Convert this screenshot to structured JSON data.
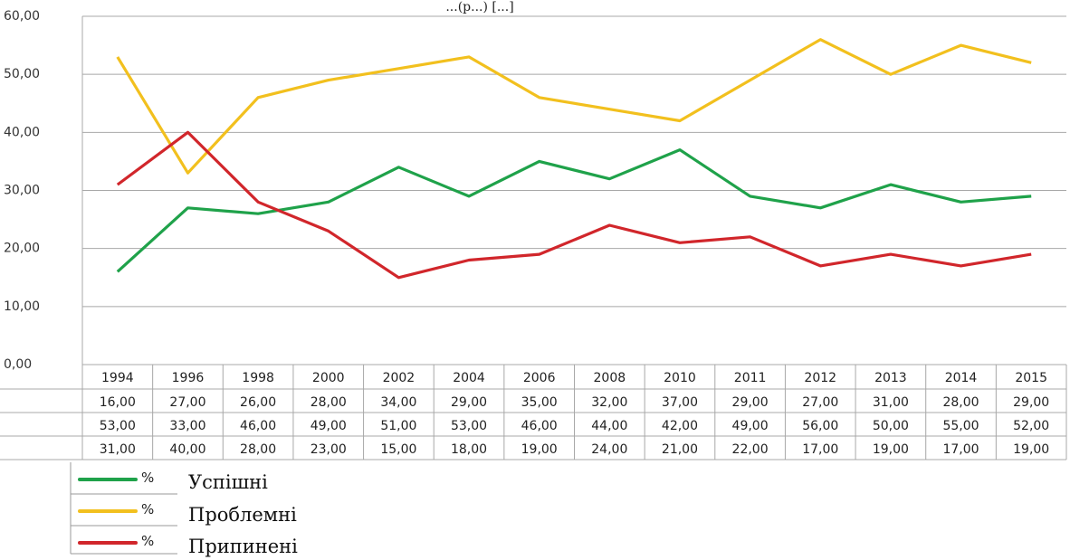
{
  "chart_data": {
    "type": "line",
    "title": "",
    "partial_header": "...(р...) [...]",
    "categories": [
      "1994",
      "1996",
      "1998",
      "2000",
      "2002",
      "2004",
      "2006",
      "2008",
      "2010",
      "2011",
      "2012",
      "2013",
      "2014",
      "2015"
    ],
    "ylim": [
      0,
      60
    ],
    "yticks": [
      "0,00",
      "10,00",
      "20,00",
      "30,00",
      "40,00",
      "50,00",
      "60,00"
    ],
    "grid": true,
    "series": [
      {
        "name": "Успішні",
        "unit": "%",
        "color": "#1fa24a",
        "values": [
          16,
          27,
          26,
          28,
          34,
          29,
          35,
          32,
          37,
          29,
          27,
          31,
          28,
          29
        ],
        "labels": [
          "16,00",
          "27,00",
          "26,00",
          "28,00",
          "34,00",
          "29,00",
          "35,00",
          "32,00",
          "37,00",
          "29,00",
          "27,00",
          "31,00",
          "28,00",
          "29,00"
        ]
      },
      {
        "name": "Проблемні",
        "unit": "%",
        "color": "#f2c01e",
        "values": [
          53,
          33,
          46,
          49,
          51,
          53,
          46,
          44,
          42,
          49,
          56,
          50,
          55,
          52
        ],
        "labels": [
          "53,00",
          "33,00",
          "46,00",
          "49,00",
          "51,00",
          "53,00",
          "46,00",
          "44,00",
          "42,00",
          "49,00",
          "56,00",
          "50,00",
          "55,00",
          "52,00"
        ]
      },
      {
        "name": "Припинені",
        "unit": "%",
        "color": "#d1262b",
        "values": [
          31,
          40,
          28,
          23,
          15,
          18,
          19,
          24,
          21,
          22,
          17,
          19,
          17,
          19
        ],
        "labels": [
          "31,00",
          "40,00",
          "28,00",
          "23,00",
          "15,00",
          "18,00",
          "19,00",
          "24,00",
          "21,00",
          "22,00",
          "17,00",
          "19,00",
          "17,00",
          "19,00"
        ]
      }
    ],
    "legend_position": "bottom-left"
  }
}
